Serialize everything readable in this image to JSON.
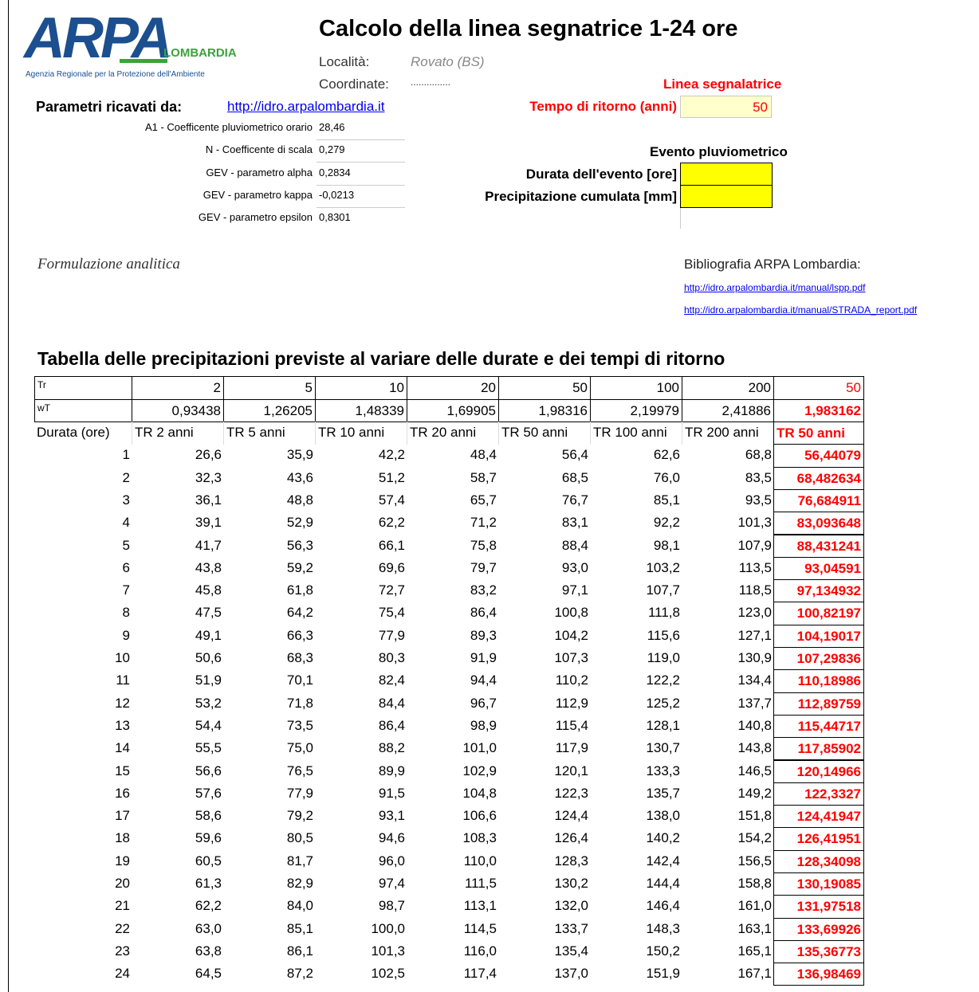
{
  "header": {
    "logo": "ARPA",
    "logo_sub": "LOMBARDIA",
    "agency": "Agenzia Regionale per la Protezione dell'Ambiente",
    "title": "Calcolo della linea segnatrice 1-24 ore"
  },
  "location": {
    "label": "Località:",
    "value": "Rovato (BS)"
  },
  "coordinates": {
    "label": "Coordinate:",
    "value": "..............."
  },
  "linea_label": "Linea segnalatrice",
  "source": {
    "label": "Parametri ricavati da:",
    "link": "http://idro.arpalombardia.it"
  },
  "return_period": {
    "label": "Tempo di ritorno (anni)",
    "value": "50"
  },
  "parameters": [
    {
      "label": "A1 - Coefficente pluviometrico orario",
      "value": "28,46"
    },
    {
      "label": "N - Coefficente di scala",
      "value": "0,279"
    },
    {
      "label": "GEV - parametro alpha",
      "value": "0,2834"
    },
    {
      "label": "GEV - parametro kappa",
      "value": "-0,0213"
    },
    {
      "label": "GEV - parametro epsilon",
      "value": "0,8301"
    }
  ],
  "event": {
    "title": "Evento pluviometrico",
    "fields": [
      "Durata dell'evento [ore]",
      "Precipitazione cumulata [mm]"
    ]
  },
  "formulation": "Formulazione analitica",
  "bibliography": {
    "title": "Bibliografia ARPA Lombardia:",
    "links": [
      "http://idro.arpalombardia.it/manual/lspp.pdf",
      "http://idro.arpalombardia.it/manual/STRADA_report.pdf"
    ]
  },
  "table": {
    "title": "Tabella delle precipitazioni previste al variare delle durate e dei tempi di ritorno",
    "rows": [
      [
        "Tr",
        "2",
        "5",
        "10",
        "20",
        "50",
        "100",
        "200",
        "50"
      ],
      [
        "wT",
        "0,93438",
        "1,26205",
        "1,48339",
        "1,69905",
        "1,98316",
        "2,19979",
        "2,41886",
        "1,983162"
      ],
      [
        "Durata (ore)",
        "TR 2 anni",
        "TR 5 anni",
        "TR 10 anni",
        "TR 20 anni",
        "TR 50 anni",
        "TR 100 anni",
        "TR 200 anni",
        "TR 50 anni"
      ],
      [
        "1",
        "26,6",
        "35,9",
        "42,2",
        "48,4",
        "56,4",
        "62,6",
        "68,8",
        "56,44079"
      ],
      [
        "2",
        "32,3",
        "43,6",
        "51,2",
        "58,7",
        "68,5",
        "76,0",
        "83,5",
        "68,482634"
      ],
      [
        "3",
        "36,1",
        "48,8",
        "57,4",
        "65,7",
        "76,7",
        "85,1",
        "93,5",
        "76,684911"
      ],
      [
        "4",
        "39,1",
        "52,9",
        "62,2",
        "71,2",
        "83,1",
        "92,2",
        "101,3",
        "83,093648"
      ],
      [
        "5",
        "41,7",
        "56,3",
        "66,1",
        "75,8",
        "88,4",
        "98,1",
        "107,9",
        "88,431241"
      ],
      [
        "6",
        "43,8",
        "59,2",
        "69,6",
        "79,7",
        "93,0",
        "103,2",
        "113,5",
        "93,04591"
      ],
      [
        "7",
        "45,8",
        "61,8",
        "72,7",
        "83,2",
        "97,1",
        "107,7",
        "118,5",
        "97,134932"
      ],
      [
        "8",
        "47,5",
        "64,2",
        "75,4",
        "86,4",
        "100,8",
        "111,8",
        "123,0",
        "100,82197"
      ],
      [
        "9",
        "49,1",
        "66,3",
        "77,9",
        "89,3",
        "104,2",
        "115,6",
        "127,1",
        "104,19017"
      ],
      [
        "10",
        "50,6",
        "68,3",
        "80,3",
        "91,9",
        "107,3",
        "119,0",
        "130,9",
        "107,29836"
      ],
      [
        "11",
        "51,9",
        "70,1",
        "82,4",
        "94,4",
        "110,2",
        "122,2",
        "134,4",
        "110,18986"
      ],
      [
        "12",
        "53,2",
        "71,8",
        "84,4",
        "96,7",
        "112,9",
        "125,2",
        "137,7",
        "112,89759"
      ],
      [
        "13",
        "54,4",
        "73,5",
        "86,4",
        "98,9",
        "115,4",
        "128,1",
        "140,8",
        "115,44717"
      ],
      [
        "14",
        "55,5",
        "75,0",
        "88,2",
        "101,0",
        "117,9",
        "130,7",
        "143,8",
        "117,85902"
      ],
      [
        "15",
        "56,6",
        "76,5",
        "89,9",
        "102,9",
        "120,1",
        "133,3",
        "146,5",
        "120,14966"
      ],
      [
        "16",
        "57,6",
        "77,9",
        "91,5",
        "104,8",
        "122,3",
        "135,7",
        "149,2",
        "122,3327"
      ],
      [
        "17",
        "58,6",
        "79,2",
        "93,1",
        "106,6",
        "124,4",
        "138,0",
        "151,8",
        "124,41947"
      ],
      [
        "18",
        "59,6",
        "80,5",
        "94,6",
        "108,3",
        "126,4",
        "140,2",
        "154,2",
        "126,41951"
      ],
      [
        "19",
        "60,5",
        "81,7",
        "96,0",
        "110,0",
        "128,3",
        "142,4",
        "156,5",
        "128,34098"
      ],
      [
        "20",
        "61,3",
        "82,9",
        "97,4",
        "111,5",
        "130,2",
        "144,4",
        "158,8",
        "130,19085"
      ],
      [
        "21",
        "62,2",
        "84,0",
        "98,7",
        "113,1",
        "132,0",
        "146,4",
        "161,0",
        "131,97518"
      ],
      [
        "22",
        "63,0",
        "85,1",
        "100,0",
        "114,5",
        "133,7",
        "148,3",
        "163,1",
        "133,69926"
      ],
      [
        "23",
        "63,8",
        "86,1",
        "101,3",
        "116,0",
        "135,4",
        "150,2",
        "165,1",
        "135,36773"
      ],
      [
        "24",
        "64,5",
        "87,2",
        "102,5",
        "117,4",
        "137,0",
        "151,9",
        "167,1",
        "136,98469"
      ]
    ]
  }
}
